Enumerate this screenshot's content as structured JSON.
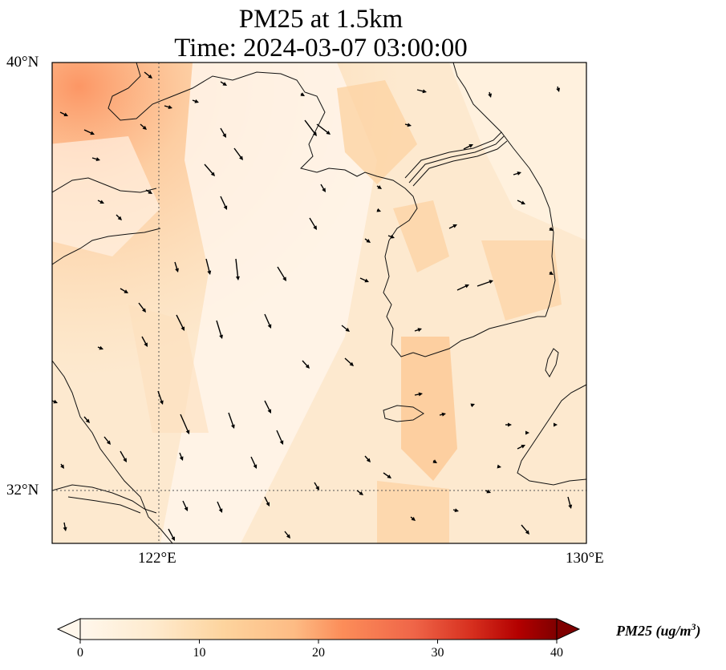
{
  "title": {
    "line1": "PM25 at 1.5km",
    "line2": "Time: 2024-03-07 03:00:00"
  },
  "map": {
    "lat_labels": [
      "40°N",
      "32°N"
    ],
    "lon_labels": [
      "122°E",
      "130°E"
    ],
    "lon_range": [
      120,
      130
    ],
    "lat_range": [
      31,
      40
    ],
    "gridlines": {
      "lon": [
        122
      ],
      "lat": [
        32
      ],
      "style": "dotted"
    }
  },
  "colorbar": {
    "label": "PM25 (ug/m",
    "label_sup": "3",
    "label_close": ")",
    "ticks": [
      "0",
      "10",
      "20",
      "30",
      "40"
    ],
    "range": [
      0,
      40
    ],
    "colormap": "OrRd",
    "extend": "both"
  },
  "colors": {
    "low": "#fff7ec",
    "mid": "#fdbb84",
    "high": "#7f0000"
  }
}
